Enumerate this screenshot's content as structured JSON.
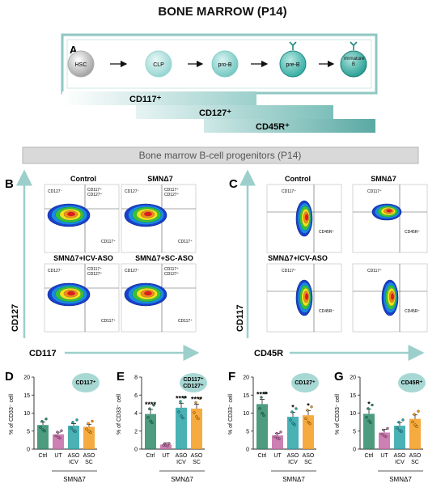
{
  "title": "BONE MARROW (P14)",
  "panel_a": {
    "letter": "A",
    "stages": [
      "HSC",
      "CLP",
      "pro-B",
      "pre-B",
      "Immature B"
    ],
    "markers": [
      "CD117⁺",
      "CD127⁺",
      "CD45R⁺"
    ]
  },
  "banner": "Bone marrow B-cell progenitors (P14)",
  "panel_b": {
    "letter": "B",
    "titles": [
      "Control",
      "SMNΔ7",
      "SMNΔ7+ICV-ASO",
      "SMNΔ7+SC-ASO"
    ],
    "quad_top_left": "CD127⁻",
    "quad_top_right": "CD117⁺\nCD127⁺",
    "quad_bottom_right": "CD117⁺",
    "x_axis": "CD117",
    "y_axis": "CD127"
  },
  "panel_c": {
    "letter": "C",
    "titles": [
      "Control",
      "SMNΔ7",
      "SMNΔ7+ICV-ASO"
    ],
    "quad_top_left": "CD117⁺",
    "quad_bottom_right": "CD45R⁺",
    "x_axis": "CD45R",
    "y_axis": "CD117"
  },
  "bar_panels": {
    "y_label": "% of CD33⁻ cell",
    "group_label": "SMNΔ7",
    "colors": {
      "ctrl": "#2e8b6a",
      "ut": "#c46aa6",
      "icv": "#2aa3a8",
      "sc": "#f39c1f"
    }
  },
  "chart_data": [
    {
      "type": "bar",
      "panel": "D",
      "badge": "CD117⁺",
      "categories": [
        "Ctrl",
        "UT",
        "ASO ICV",
        "ASO SC"
      ],
      "values": [
        6.7,
        4.1,
        6.5,
        6.2
      ],
      "errors": [
        0.8,
        0.6,
        0.6,
        0.7
      ],
      "stars": [
        "",
        "",
        "",
        ""
      ],
      "yticks": [
        "0",
        "5",
        "10",
        "15",
        "20"
      ],
      "ylim": [
        0,
        20
      ]
    },
    {
      "type": "bar",
      "panel": "E",
      "badge": "CD117⁺\nCD127⁺",
      "categories": [
        "Ctrl",
        "UT",
        "ASO ICV",
        "ASO SC"
      ],
      "values": [
        3.9,
        0.5,
        4.6,
        4.5
      ],
      "errors": [
        0.5,
        0.2,
        0.5,
        0.5
      ],
      "stars": [
        "****",
        "",
        "****",
        "****"
      ],
      "yticks": [
        "0",
        "2",
        "4",
        "6",
        "8"
      ],
      "ylim": [
        0,
        8
      ]
    },
    {
      "type": "bar",
      "panel": "F",
      "badge": "CD127⁺",
      "categories": [
        "Ctrl",
        "UT",
        "ASO ICV",
        "ASO SC"
      ],
      "values": [
        12.5,
        3.8,
        9.0,
        9.4
      ],
      "errors": [
        1.3,
        0.6,
        1.2,
        1.3
      ],
      "stars": [
        "****",
        "",
        "*",
        "*"
      ],
      "yticks": [
        "0",
        "5",
        "10",
        "15",
        "20"
      ],
      "ylim": [
        0,
        20
      ]
    },
    {
      "type": "bar",
      "panel": "G",
      "badge": "CD45R⁺",
      "categories": [
        "Ctrl",
        "UT",
        "ASO ICV",
        "ASO SC"
      ],
      "values": [
        9.8,
        4.6,
        6.5,
        8.4
      ],
      "errors": [
        1.3,
        0.9,
        0.9,
        1.1
      ],
      "stars": [
        "*",
        "",
        "",
        ""
      ],
      "yticks": [
        "0",
        "5",
        "10",
        "15",
        "20"
      ],
      "ylim": [
        0,
        20
      ]
    }
  ]
}
